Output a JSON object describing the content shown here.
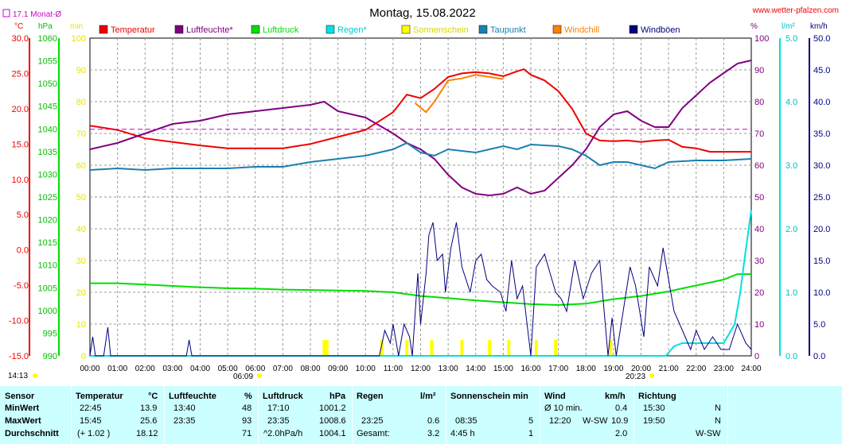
{
  "header": {
    "title": "Montag, 15.08.2022",
    "site": "www.wetter-pfalzen.com",
    "monthly_avg_label": "17.1 Monat-Ø",
    "sunrise": "06:09",
    "sunset": "20:23",
    "daylight": "14:13"
  },
  "axis_units": {
    "temperature": "°C",
    "pressure": "hPa",
    "sunshine": "min",
    "humidity": "%",
    "rain": "l/m²",
    "wind": "km/h"
  },
  "chart_data": {
    "type": "line",
    "title": "Montag, 15.08.2022",
    "x_ticks": [
      "00:00",
      "01:00",
      "02:00",
      "03:00",
      "04:00",
      "05:00",
      "06:00",
      "07:00",
      "08:00",
      "09:00",
      "10:00",
      "11:00",
      "12:00",
      "13:00",
      "14:00",
      "15:00",
      "16:00",
      "17:00",
      "18:00",
      "19:00",
      "20:00",
      "21:00",
      "22:00",
      "23:00",
      "24:00"
    ],
    "xlim_hours": [
      0,
      24
    ],
    "grid": true,
    "legend_position": "top",
    "axes": {
      "temperature": {
        "unit": "°C",
        "ylim": [
          -15,
          30
        ],
        "ticks": [
          "30.0",
          "25.0",
          "20.0",
          "15.0",
          "10.0",
          "5.0",
          "0.0",
          "-5.0",
          "-10.0",
          "-15.0"
        ]
      },
      "pressure": {
        "unit": "hPa",
        "ylim": [
          990,
          1060
        ],
        "ticks": [
          "1060",
          "1055",
          "1050",
          "1045",
          "1040",
          "1035",
          "1030",
          "1025",
          "1020",
          "1015",
          "1010",
          "1005",
          "1000",
          "995",
          "990"
        ]
      },
      "sunshine": {
        "unit": "min",
        "ylim": [
          0,
          100
        ],
        "ticks": [
          "100",
          "90",
          "80",
          "70",
          "60",
          "50",
          "40",
          "30",
          "20",
          "10",
          "0"
        ]
      },
      "humidity": {
        "unit": "%",
        "ylim": [
          0,
          100
        ],
        "ticks": [
          "100",
          "90",
          "80",
          "70",
          "60",
          "50",
          "40",
          "30",
          "20",
          "10",
          "0"
        ]
      },
      "rain": {
        "unit": "l/m²",
        "ylim": [
          0,
          5
        ],
        "ticks": [
          "5.0",
          "4.0",
          "3.0",
          "2.0",
          "1.0",
          "0.0"
        ]
      },
      "wind": {
        "unit": "km/h",
        "ylim": [
          0,
          50
        ],
        "ticks": [
          "50.0",
          "45.0",
          "40.0",
          "35.0",
          "30.0",
          "25.0",
          "20.0",
          "15.0",
          "10.0",
          "5.0",
          "0.0"
        ]
      }
    },
    "series": [
      {
        "name": "Temperatur",
        "axis": "temperature",
        "color": "#ee0000",
        "points": [
          [
            0,
            17.6
          ],
          [
            1,
            17.0
          ],
          [
            2,
            15.8
          ],
          [
            3,
            15.3
          ],
          [
            4,
            14.8
          ],
          [
            5,
            14.4
          ],
          [
            6,
            14.4
          ],
          [
            7,
            14.4
          ],
          [
            8,
            15.0
          ],
          [
            9,
            16.0
          ],
          [
            10,
            17.0
          ],
          [
            11,
            19.5
          ],
          [
            11.5,
            22.0
          ],
          [
            12,
            21.5
          ],
          [
            12.5,
            22.8
          ],
          [
            13,
            24.5
          ],
          [
            13.5,
            25.0
          ],
          [
            14,
            25.2
          ],
          [
            14.5,
            25.0
          ],
          [
            15,
            24.6
          ],
          [
            15.5,
            25.3
          ],
          [
            15.75,
            25.6
          ],
          [
            16,
            24.8
          ],
          [
            16.5,
            24.0
          ],
          [
            17,
            22.5
          ],
          [
            17.5,
            20.0
          ],
          [
            18,
            16.5
          ],
          [
            18.5,
            15.5
          ],
          [
            19,
            15.4
          ],
          [
            19.5,
            15.5
          ],
          [
            20,
            15.3
          ],
          [
            20.5,
            15.5
          ],
          [
            21,
            15.6
          ],
          [
            21.5,
            14.6
          ],
          [
            22,
            14.4
          ],
          [
            22.5,
            13.9
          ],
          [
            23,
            13.9
          ],
          [
            24,
            13.9
          ]
        ]
      },
      {
        "name": "Luftfeuchte*",
        "axis": "humidity",
        "color": "#800080",
        "points": [
          [
            0,
            65
          ],
          [
            1,
            67
          ],
          [
            2,
            70
          ],
          [
            3,
            73
          ],
          [
            4,
            74
          ],
          [
            5,
            76
          ],
          [
            6,
            77
          ],
          [
            7,
            78
          ],
          [
            8,
            79
          ],
          [
            8.5,
            80
          ],
          [
            9,
            77
          ],
          [
            10,
            75
          ],
          [
            11,
            70
          ],
          [
            11.5,
            67
          ],
          [
            12,
            65
          ],
          [
            12.5,
            62
          ],
          [
            13,
            57
          ],
          [
            13.5,
            53
          ],
          [
            14,
            51
          ],
          [
            14.5,
            50.5
          ],
          [
            15,
            51
          ],
          [
            15.5,
            53
          ],
          [
            16,
            51
          ],
          [
            16.5,
            52
          ],
          [
            17,
            56
          ],
          [
            17.5,
            60
          ],
          [
            18,
            65
          ],
          [
            18.5,
            72
          ],
          [
            19,
            76
          ],
          [
            19.5,
            77
          ],
          [
            20,
            74
          ],
          [
            20.5,
            72
          ],
          [
            21,
            72
          ],
          [
            21.5,
            78
          ],
          [
            22,
            82
          ],
          [
            22.5,
            86
          ],
          [
            23,
            89
          ],
          [
            23.5,
            92
          ],
          [
            24,
            93
          ]
        ]
      },
      {
        "name": "Luftdruck",
        "axis": "pressure",
        "color": "#00dd00",
        "points": [
          [
            0,
            1006
          ],
          [
            1,
            1006
          ],
          [
            2,
            1005.7
          ],
          [
            3,
            1005.4
          ],
          [
            4,
            1005.1
          ],
          [
            5,
            1004.9
          ],
          [
            6,
            1004.8
          ],
          [
            7,
            1004.6
          ],
          [
            8,
            1004.5
          ],
          [
            9,
            1004.4
          ],
          [
            10,
            1004.3
          ],
          [
            11,
            1004.0
          ],
          [
            12,
            1003.2
          ],
          [
            13,
            1002.7
          ],
          [
            14,
            1002.2
          ],
          [
            15,
            1001.8
          ],
          [
            16,
            1001.4
          ],
          [
            17,
            1001.2
          ],
          [
            18,
            1001.5
          ],
          [
            19,
            1002.5
          ],
          [
            20,
            1003.2
          ],
          [
            21,
            1004.2
          ],
          [
            22,
            1005.5
          ],
          [
            23,
            1006.8
          ],
          [
            23.5,
            1008.0
          ],
          [
            24,
            1008.0
          ]
        ]
      },
      {
        "name": "Regen*",
        "axis": "rain",
        "color": "#00e0e0",
        "points": [
          [
            0,
            0
          ],
          [
            20.9,
            0
          ],
          [
            21.2,
            0.15
          ],
          [
            21.5,
            0.2
          ],
          [
            22,
            0.2
          ],
          [
            23,
            0.2
          ],
          [
            23.4,
            0.5
          ],
          [
            23.6,
            1.0
          ],
          [
            23.75,
            1.5
          ],
          [
            24,
            2.3
          ]
        ]
      },
      {
        "name": "Sonnenschein",
        "axis": "sunshine",
        "color": "#ffff00",
        "points": [
          [
            8.5,
            5
          ],
          [
            8.6,
            5
          ],
          [
            10.6,
            5
          ],
          [
            11.5,
            5
          ],
          [
            12.4,
            5
          ],
          [
            13.5,
            5
          ],
          [
            14.5,
            5
          ],
          [
            15.2,
            5
          ],
          [
            16.2,
            5
          ],
          [
            16.9,
            5
          ],
          [
            18.9,
            5
          ]
        ]
      },
      {
        "name": "Taupunkt",
        "axis": "humidity",
        "color": "#1a80b0",
        "points": [
          [
            0,
            58.5
          ],
          [
            1,
            59
          ],
          [
            2,
            58.5
          ],
          [
            3,
            59
          ],
          [
            4,
            59
          ],
          [
            5,
            59
          ],
          [
            6,
            59.5
          ],
          [
            7,
            59.5
          ],
          [
            8,
            61
          ],
          [
            9,
            62
          ],
          [
            10,
            63
          ],
          [
            11,
            65
          ],
          [
            11.5,
            67
          ],
          [
            12,
            64
          ],
          [
            12.5,
            63
          ],
          [
            13,
            65
          ],
          [
            14,
            64
          ],
          [
            15,
            66
          ],
          [
            15.5,
            65
          ],
          [
            16,
            66.5
          ],
          [
            17,
            66
          ],
          [
            17.5,
            65
          ],
          [
            18,
            63
          ],
          [
            18.5,
            60
          ],
          [
            19,
            61
          ],
          [
            19.5,
            61
          ],
          [
            20,
            60
          ],
          [
            20.5,
            59
          ],
          [
            21,
            61
          ],
          [
            22,
            61.5
          ],
          [
            23,
            61.5
          ],
          [
            24,
            62
          ]
        ]
      },
      {
        "name": "Windchill",
        "axis": "temperature",
        "color": "#ff8000",
        "points": [
          [
            11.8,
            20.8
          ],
          [
            12.2,
            19.5
          ],
          [
            12.5,
            21.0
          ],
          [
            13,
            24.0
          ],
          [
            13.5,
            24.3
          ],
          [
            14,
            24.8
          ],
          [
            14.5,
            24.5
          ],
          [
            15,
            24.2
          ]
        ]
      },
      {
        "name": "Windböen",
        "axis": "wind",
        "color": "#000080",
        "points": [
          [
            0,
            0
          ],
          [
            0.1,
            3
          ],
          [
            0.2,
            0
          ],
          [
            0.5,
            0
          ],
          [
            0.65,
            4.5
          ],
          [
            0.75,
            0
          ],
          [
            3.5,
            0
          ],
          [
            3.6,
            2.5
          ],
          [
            3.7,
            0
          ],
          [
            10.5,
            0
          ],
          [
            10.7,
            4
          ],
          [
            10.9,
            2
          ],
          [
            11.0,
            5
          ],
          [
            11.2,
            0
          ],
          [
            11.4,
            5
          ],
          [
            11.6,
            3
          ],
          [
            11.7,
            0
          ],
          [
            11.9,
            13
          ],
          [
            12.0,
            5
          ],
          [
            12.2,
            13
          ],
          [
            12.3,
            19
          ],
          [
            12.45,
            21
          ],
          [
            12.6,
            15
          ],
          [
            12.8,
            16
          ],
          [
            12.9,
            10
          ],
          [
            13.1,
            17
          ],
          [
            13.3,
            21
          ],
          [
            13.5,
            14
          ],
          [
            13.8,
            10
          ],
          [
            14.0,
            15
          ],
          [
            14.2,
            16
          ],
          [
            14.4,
            12
          ],
          [
            14.6,
            11
          ],
          [
            14.9,
            10
          ],
          [
            15.1,
            7
          ],
          [
            15.3,
            15
          ],
          [
            15.5,
            9
          ],
          [
            15.7,
            11
          ],
          [
            16.0,
            0
          ],
          [
            16.2,
            14
          ],
          [
            16.5,
            16
          ],
          [
            16.7,
            13
          ],
          [
            16.9,
            10
          ],
          [
            17.1,
            9
          ],
          [
            17.3,
            7
          ],
          [
            17.6,
            15
          ],
          [
            17.9,
            9
          ],
          [
            18.2,
            13
          ],
          [
            18.5,
            15
          ],
          [
            18.8,
            0
          ],
          [
            18.95,
            6
          ],
          [
            19.1,
            0
          ],
          [
            19.6,
            14
          ],
          [
            19.8,
            11
          ],
          [
            20.1,
            3
          ],
          [
            20.3,
            14
          ],
          [
            20.6,
            11
          ],
          [
            20.8,
            17
          ],
          [
            21.0,
            12
          ],
          [
            21.2,
            7
          ],
          [
            21.4,
            5
          ],
          [
            21.6,
            3
          ],
          [
            21.8,
            1
          ],
          [
            22.0,
            4
          ],
          [
            22.3,
            1
          ],
          [
            22.6,
            3
          ],
          [
            22.9,
            1
          ],
          [
            23.2,
            1
          ],
          [
            23.5,
            5
          ],
          [
            23.8,
            2
          ],
          [
            24,
            1
          ]
        ]
      },
      {
        "name": "Monat-Ø",
        "axis": "temperature",
        "color": "#cc00cc",
        "dashed": true,
        "points": [
          [
            0,
            17.1
          ],
          [
            24,
            17.1
          ]
        ]
      }
    ]
  },
  "stats_table": {
    "columns": [
      {
        "title": "Sensor",
        "unit": ""
      },
      {
        "title": "Temperatur",
        "unit": "°C"
      },
      {
        "title": "Luftfeuchte",
        "unit": "%"
      },
      {
        "title": "Luftdruck",
        "unit": "hPa"
      },
      {
        "title": "Regen",
        "unit": "l/m²"
      },
      {
        "title": "Sonnenschein min",
        "unit": ""
      },
      {
        "title": "Wind",
        "unit": "km/h"
      },
      {
        "title": "Richtung",
        "unit": ""
      }
    ],
    "rows": [
      {
        "label": "MinWert",
        "temp_time": "22:45",
        "temp_val": "13.9",
        "hum_time": "13:40",
        "hum_val": "48",
        "press_time": "17:10",
        "press_val": "1001.2",
        "rain_time": "",
        "rain_val": "",
        "sun_time": "",
        "sun_val": "",
        "wind_label": "Ø 10 min.",
        "wind_dir": "",
        "wind_val": "0.4",
        "dir_time": "15:30",
        "dir_val": "N"
      },
      {
        "label": "MaxWert",
        "temp_time": "15:45",
        "temp_val": "25.6",
        "hum_time": "23:35",
        "hum_val": "93",
        "press_time": "23:35",
        "press_val": "1008.6",
        "rain_time": "23:25",
        "rain_val": "0.6",
        "sun_time": "08:35",
        "sun_val": "5",
        "wind_label": "12:20",
        "wind_dir": "W-SW",
        "wind_val": "10.9",
        "dir_time": "19:50",
        "dir_val": "N"
      },
      {
        "label": "Durchschnitt",
        "temp_time": "(+ 1.02 )",
        "temp_val": "18.12",
        "hum_time": "",
        "hum_val": "71",
        "press_time": "^2.0hPa/h",
        "press_val": "1004.1",
        "rain_time": "Gesamt:",
        "rain_val": "3.2",
        "sun_time": "4:45 h",
        "sun_val": "1",
        "wind_label": "",
        "wind_dir": "",
        "wind_val": "2.0",
        "dir_time": "",
        "dir_val": "W-SW"
      }
    ]
  }
}
